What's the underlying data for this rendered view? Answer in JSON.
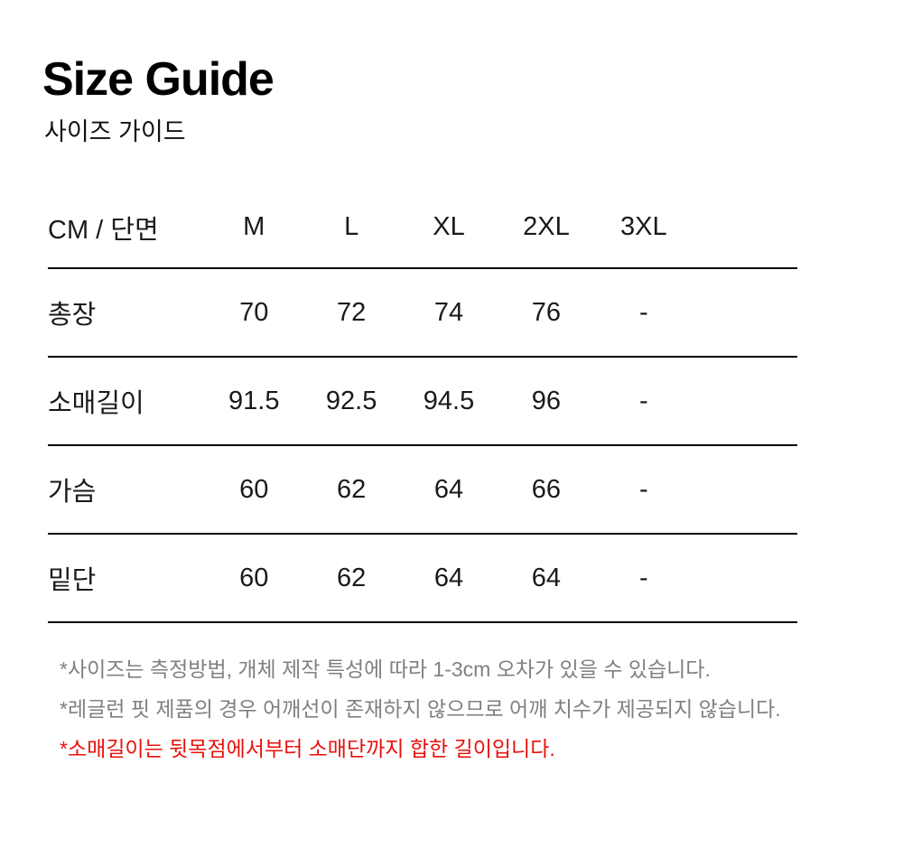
{
  "header": {
    "title": "Size Guide",
    "subtitle": "사이즈 가이드"
  },
  "table": {
    "unit_header": "CM / 단면",
    "columns": [
      "CM / 단면",
      "M",
      "L",
      "XL",
      "2XL",
      "3XL"
    ],
    "rows": [
      {
        "label": "총장",
        "values": [
          "70",
          "72",
          "74",
          "76",
          "-"
        ]
      },
      {
        "label": "소매길이",
        "values": [
          "91.5",
          "92.5",
          "94.5",
          "96",
          "-"
        ]
      },
      {
        "label": "가슴",
        "values": [
          "60",
          "62",
          "64",
          "66",
          "-"
        ]
      },
      {
        "label": "밑단",
        "values": [
          "60",
          "62",
          "64",
          "64",
          "-"
        ]
      }
    ]
  },
  "notes": [
    {
      "text": "*사이즈는 측정방법, 개체 제작 특성에 따라 1-3cm 오차가 있을 수 있습니다.",
      "color": "#808080"
    },
    {
      "text": "*레글런 핏 제품의 경우 어깨선이 존재하지 않으므로 어깨 치수가 제공되지 않습니다.",
      "color": "#808080"
    },
    {
      "text": "*소매길이는 뒷목점에서부터 소매단까지 합한 길이입니다.",
      "color": "#e8110c"
    }
  ],
  "colors": {
    "background": "#ffffff",
    "title_text": "#000000",
    "table_text": "#1a1a1a",
    "table_line": "#000000",
    "note_gray": "#808080",
    "note_red": "#e8110c"
  }
}
